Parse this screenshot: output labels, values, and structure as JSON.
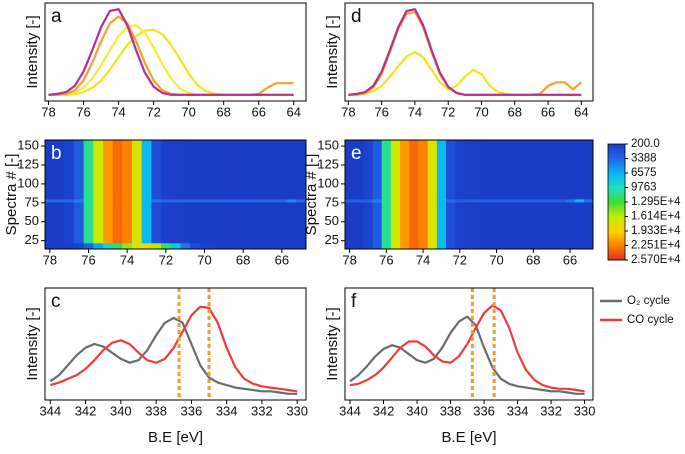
{
  "chart_data": [
    {
      "type": "line",
      "panel_label": "a",
      "ylabel": "Intensity [-]",
      "xlim": [
        78.2,
        63.3
      ],
      "xticks": [
        78,
        76,
        74,
        72,
        70,
        68,
        66,
        64
      ],
      "ylim": [
        -0.05,
        1.05
      ],
      "x": [
        78,
        77.5,
        77,
        76.5,
        76,
        75.5,
        75,
        74.5,
        74,
        73.5,
        73,
        72.5,
        72,
        71.5,
        71,
        70.5,
        70,
        69.5,
        69,
        68.5,
        68,
        67.5,
        67,
        66.5,
        66,
        65.5,
        65,
        64.5,
        64
      ],
      "series": [
        {
          "color": "#f2e41c",
          "values": [
            0.02,
            0.02,
            0.02,
            0.03,
            0.05,
            0.1,
            0.18,
            0.3,
            0.44,
            0.58,
            0.68,
            0.74,
            0.75,
            0.7,
            0.58,
            0.42,
            0.26,
            0.13,
            0.06,
            0.03,
            0.02,
            0.02,
            0.02,
            0.02,
            0.02,
            0.02,
            0.02,
            0.02,
            0.02
          ]
        },
        {
          "color": "#f6ea3a",
          "values": [
            0.02,
            0.02,
            0.03,
            0.05,
            0.1,
            0.2,
            0.35,
            0.52,
            0.68,
            0.78,
            0.8,
            0.72,
            0.55,
            0.36,
            0.2,
            0.09,
            0.04,
            0.02,
            0.02,
            0.02,
            0.02,
            0.02,
            0.02,
            0.02,
            0.02,
            0.02,
            0.02,
            0.02,
            0.02
          ]
        },
        {
          "color": "#f5a030",
          "values": [
            0.02,
            0.02,
            0.03,
            0.07,
            0.18,
            0.38,
            0.62,
            0.82,
            0.9,
            0.82,
            0.62,
            0.38,
            0.18,
            0.07,
            0.03,
            0.02,
            0.02,
            0.02,
            0.02,
            0.02,
            0.02,
            0.02,
            0.02,
            0.02,
            0.03,
            0.1,
            0.15,
            0.15,
            0.15
          ]
        },
        {
          "color": "#b3308f",
          "values": [
            0.02,
            0.03,
            0.05,
            0.12,
            0.28,
            0.52,
            0.78,
            0.96,
            0.98,
            0.8,
            0.52,
            0.27,
            0.11,
            0.04,
            0.02,
            0.02,
            0.02,
            0.02,
            0.02,
            0.02,
            0.02,
            0.02,
            0.02,
            0.02,
            0.02,
            0.02,
            0.02,
            0.02,
            0.02
          ]
        }
      ]
    },
    {
      "type": "heatmap",
      "panel_label": "b",
      "ylabel": "Spectra # [-]",
      "xlim": [
        78.25,
        64.75
      ],
      "xticks": [
        78,
        76,
        74,
        72,
        70,
        68,
        66
      ],
      "ylim": [
        14,
        158
      ],
      "yticks": [
        25,
        50,
        75,
        100,
        125,
        150
      ],
      "x_edges": [
        78.25,
        77.75,
        77.25,
        76.75,
        76.25,
        75.75,
        75.25,
        74.75,
        74.25,
        73.75,
        73.25,
        72.75,
        72.25,
        71.75,
        71.25,
        70.75,
        70.25,
        69.75,
        69.25,
        68.75,
        68.25,
        67.75,
        67.25,
        66.75,
        66.25,
        65.75,
        65.25,
        64.75
      ],
      "y_edges": [
        14,
        22,
        76,
        80,
        158
      ],
      "z": [
        [
          200,
          200,
          300,
          800,
          3000,
          6000,
          9000,
          12000,
          15000,
          17000,
          18000,
          16000,
          12000,
          8000,
          4000,
          1500,
          600,
          400,
          300,
          300,
          300,
          300,
          300,
          300,
          300,
          300,
          300
        ],
        [
          200,
          300,
          700,
          2500,
          11000,
          17000,
          21500,
          23500,
          22500,
          17500,
          7000,
          1500,
          600,
          400,
          350,
          300,
          300,
          300,
          300,
          300,
          300,
          300,
          300,
          300,
          300,
          300,
          300
        ],
        [
          3500,
          3500,
          3500,
          4500,
          11000,
          17000,
          21500,
          23500,
          22500,
          17500,
          7000,
          4000,
          3500,
          3500,
          3500,
          3500,
          3500,
          3500,
          3500,
          3500,
          3500,
          3500,
          3500,
          3500,
          3500,
          5000,
          3500
        ],
        [
          200,
          300,
          700,
          2500,
          11000,
          17000,
          21500,
          23500,
          22500,
          17500,
          7000,
          1500,
          600,
          400,
          350,
          300,
          300,
          300,
          300,
          300,
          300,
          300,
          300,
          300,
          300,
          300,
          300
        ]
      ],
      "colorscale": [
        {
          "value": 200,
          "color": "#1a3cc8"
        },
        {
          "value": 3388,
          "color": "#2266ea"
        },
        {
          "value": 6575,
          "color": "#08b4f2"
        },
        {
          "value": 9763,
          "color": "#1ee0c4"
        },
        {
          "value": 12950,
          "color": "#3ddc3d"
        },
        {
          "value": 16140,
          "color": "#bdf000"
        },
        {
          "value": 19330,
          "color": "#ffd200"
        },
        {
          "value": 22510,
          "color": "#ff8200"
        },
        {
          "value": 25700,
          "color": "#e03020"
        }
      ],
      "clim": [
        200,
        25700
      ],
      "cticks": [
        {
          "value": 200,
          "label": "200.0"
        },
        3388,
        6575,
        9763,
        {
          "value": 12950,
          "label": "1.295E+4"
        },
        {
          "value": 16140,
          "label": "1.614E+4"
        },
        {
          "value": 19330,
          "label": "1.933E+4"
        },
        {
          "value": 22510,
          "label": "2.251E+4"
        },
        {
          "value": 25700,
          "label": "2.570E+4"
        }
      ]
    },
    {
      "type": "line",
      "panel_label": "c",
      "ylabel": "Intensity [-]",
      "xlabel": "B.E [eV]",
      "xlim": [
        344.3,
        329.5
      ],
      "xticks": [
        344,
        342,
        340,
        338,
        336,
        334,
        332,
        330
      ],
      "ylim": [
        0,
        0.9
      ],
      "vlines": [
        336.7,
        335.0
      ],
      "vline_color": "#f39a2e",
      "x": [
        344,
        343.5,
        343,
        342.5,
        342,
        341.5,
        341,
        340.5,
        340,
        339.5,
        339,
        338.5,
        338,
        337.5,
        337,
        336.5,
        336,
        335.5,
        335,
        334.5,
        334,
        333.5,
        333,
        332.5,
        332,
        331.5,
        331,
        330.5,
        330
      ],
      "series": [
        {
          "color": "#6b6b6b",
          "values": [
            0.15,
            0.2,
            0.28,
            0.36,
            0.42,
            0.45,
            0.43,
            0.38,
            0.33,
            0.3,
            0.32,
            0.4,
            0.52,
            0.62,
            0.66,
            0.62,
            0.45,
            0.28,
            0.18,
            0.14,
            0.12,
            0.1,
            0.09,
            0.08,
            0.07,
            0.07,
            0.06,
            0.05,
            0.05
          ]
        },
        {
          "color": "#ef3b3b",
          "values": [
            0.12,
            0.14,
            0.17,
            0.2,
            0.25,
            0.32,
            0.4,
            0.46,
            0.48,
            0.45,
            0.38,
            0.32,
            0.3,
            0.33,
            0.42,
            0.55,
            0.68,
            0.75,
            0.74,
            0.62,
            0.42,
            0.26,
            0.17,
            0.13,
            0.11,
            0.1,
            0.09,
            0.08,
            0.07
          ]
        }
      ]
    },
    {
      "type": "line",
      "panel_label": "d",
      "ylabel": "Intensity [-]",
      "xlim": [
        78.2,
        63.3
      ],
      "xticks": [
        78,
        76,
        74,
        72,
        70,
        68,
        66,
        64
      ],
      "ylim": [
        -0.05,
        1.05
      ],
      "x": [
        78,
        77.5,
        77,
        76.5,
        76,
        75.5,
        75,
        74.5,
        74,
        73.5,
        73,
        72.5,
        72,
        71.5,
        71,
        70.5,
        70,
        69.5,
        69,
        68.5,
        68,
        67.5,
        67,
        66.5,
        66,
        65.5,
        65,
        64.5,
        64
      ],
      "series": [
        {
          "color": "#f2e41c",
          "values": [
            0.02,
            0.02,
            0.03,
            0.06,
            0.12,
            0.22,
            0.34,
            0.45,
            0.5,
            0.44,
            0.3,
            0.16,
            0.08,
            0.12,
            0.22,
            0.3,
            0.25,
            0.12,
            0.05,
            0.03,
            0.02,
            0.02,
            0.02,
            0.02,
            0.02,
            0.02,
            0.02,
            0.02,
            0.02
          ]
        },
        {
          "color": "#f5a030",
          "values": [
            0.02,
            0.02,
            0.04,
            0.1,
            0.25,
            0.5,
            0.76,
            0.93,
            0.95,
            0.78,
            0.5,
            0.25,
            0.1,
            0.04,
            0.02,
            0.02,
            0.02,
            0.02,
            0.02,
            0.02,
            0.02,
            0.02,
            0.02,
            0.03,
            0.12,
            0.16,
            0.16,
            0.08,
            0.16
          ]
        },
        {
          "color": "#b3308f",
          "values": [
            0.02,
            0.03,
            0.05,
            0.12,
            0.28,
            0.52,
            0.78,
            0.96,
            0.98,
            0.8,
            0.52,
            0.27,
            0.11,
            0.04,
            0.02,
            0.02,
            0.02,
            0.02,
            0.02,
            0.02,
            0.02,
            0.02,
            0.02,
            0.02,
            0.02,
            0.02,
            0.02,
            0.02,
            0.02
          ]
        }
      ]
    },
    {
      "type": "heatmap",
      "panel_label": "e",
      "ylabel": "Spectra # [-]",
      "xlim": [
        78.25,
        64.75
      ],
      "xticks": [
        78,
        76,
        74,
        72,
        70,
        68,
        66
      ],
      "ylim": [
        14,
        158
      ],
      "yticks": [
        25,
        50,
        75,
        100,
        125,
        150
      ],
      "x_edges": [
        78.25,
        77.75,
        77.25,
        76.75,
        76.25,
        75.75,
        75.25,
        74.75,
        74.25,
        73.75,
        73.25,
        72.75,
        72.25,
        71.75,
        71.25,
        70.75,
        70.25,
        69.75,
        69.25,
        68.75,
        68.25,
        67.75,
        67.25,
        66.75,
        66.25,
        65.75,
        65.25,
        64.75
      ],
      "y_edges": [
        14,
        76,
        80,
        158
      ],
      "z": [
        [
          200,
          300,
          700,
          2500,
          11000,
          17000,
          21500,
          23500,
          22500,
          17500,
          7000,
          1500,
          600,
          400,
          350,
          300,
          300,
          300,
          300,
          300,
          300,
          300,
          300,
          300,
          300,
          300,
          300
        ],
        [
          3000,
          3000,
          3000,
          4500,
          11000,
          17000,
          21500,
          23500,
          22500,
          17500,
          7000,
          3500,
          3000,
          3000,
          3000,
          3000,
          3000,
          3000,
          3000,
          3000,
          3000,
          3000,
          3000,
          3000,
          4000,
          7000,
          4000
        ],
        [
          200,
          300,
          700,
          2500,
          11000,
          17000,
          21500,
          23500,
          22500,
          17500,
          7000,
          1500,
          600,
          400,
          350,
          300,
          300,
          300,
          300,
          300,
          300,
          300,
          300,
          300,
          300,
          300,
          300
        ]
      ],
      "colorscale": [
        {
          "value": 200,
          "color": "#1a3cc8"
        },
        {
          "value": 3388,
          "color": "#2266ea"
        },
        {
          "value": 6575,
          "color": "#08b4f2"
        },
        {
          "value": 9763,
          "color": "#1ee0c4"
        },
        {
          "value": 12950,
          "color": "#3ddc3d"
        },
        {
          "value": 16140,
          "color": "#bdf000"
        },
        {
          "value": 19330,
          "color": "#ffd200"
        },
        {
          "value": 22510,
          "color": "#ff8200"
        },
        {
          "value": 25700,
          "color": "#e03020"
        }
      ],
      "clim": [
        200,
        25700
      ]
    },
    {
      "type": "line",
      "panel_label": "f",
      "ylabel": "Intensity [-]",
      "xlabel": "B.E [eV]",
      "xlim": [
        344.3,
        329.5
      ],
      "xticks": [
        344,
        342,
        340,
        338,
        336,
        334,
        332,
        330
      ],
      "ylim": [
        0,
        0.9
      ],
      "vlines": [
        336.7,
        335.4
      ],
      "vline_color": "#f39a2e",
      "legend": "right",
      "x": [
        344,
        343.5,
        343,
        342.5,
        342,
        341.5,
        341,
        340.5,
        340,
        339.5,
        339,
        338.5,
        338,
        337.5,
        337,
        336.5,
        336,
        335.5,
        335,
        334.5,
        334,
        333.5,
        333,
        332.5,
        332,
        331.5,
        331,
        330.5,
        330
      ],
      "series": [
        {
          "name": "O₂ cycle",
          "color": "#6b6b6b",
          "values": [
            0.15,
            0.2,
            0.27,
            0.35,
            0.41,
            0.44,
            0.42,
            0.37,
            0.32,
            0.3,
            0.33,
            0.42,
            0.54,
            0.63,
            0.67,
            0.6,
            0.42,
            0.26,
            0.17,
            0.13,
            0.11,
            0.1,
            0.09,
            0.08,
            0.07,
            0.07,
            0.06,
            0.05,
            0.05
          ]
        },
        {
          "name": "CO cycle",
          "color": "#ef3b3b",
          "values": [
            0.12,
            0.13,
            0.16,
            0.2,
            0.26,
            0.34,
            0.42,
            0.47,
            0.47,
            0.43,
            0.36,
            0.31,
            0.3,
            0.35,
            0.45,
            0.58,
            0.7,
            0.76,
            0.72,
            0.58,
            0.38,
            0.24,
            0.16,
            0.12,
            0.1,
            0.09,
            0.09,
            0.08,
            0.07
          ]
        }
      ]
    }
  ]
}
